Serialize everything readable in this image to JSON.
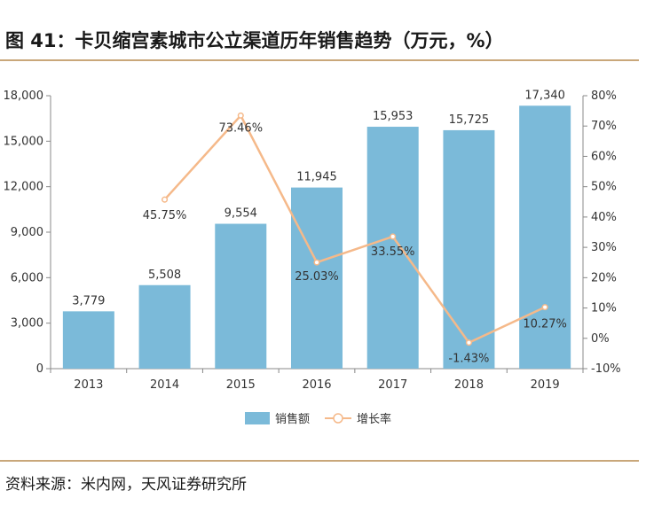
{
  "header": {
    "title": "图 41：卡贝缩宫素城市公立渠道历年销售趋势（万元，%）"
  },
  "footer": {
    "source": "资料来源：米内网，天风证券研究所"
  },
  "colors": {
    "bar": "#7bbad9",
    "line": "#f5b98a",
    "rule": "#c9a77a",
    "axis": "#888888"
  },
  "chart_data": {
    "type": "bar",
    "title": "卡贝缩宫素城市公立渠道历年销售趋势（万元，%）",
    "categories": [
      "2013",
      "2014",
      "2015",
      "2016",
      "2017",
      "2018",
      "2019"
    ],
    "series": [
      {
        "name": "销售额",
        "type": "bar",
        "axis": "left",
        "values": [
          3779,
          5508,
          9554,
          11945,
          15953,
          15725,
          17340
        ],
        "labels": [
          "3,779",
          "5,508",
          "9,554",
          "11,945",
          "15,953",
          "15,725",
          "17,340"
        ]
      },
      {
        "name": "增长率",
        "type": "line",
        "axis": "right",
        "values": [
          null,
          45.75,
          73.46,
          25.03,
          33.55,
          -1.43,
          10.27
        ],
        "labels": [
          "",
          "45.75%",
          "73.46%",
          "25.03%",
          "33.55%",
          "-1.43%",
          "10.27%"
        ]
      }
    ],
    "y_left": {
      "ylim": [
        0,
        18000
      ],
      "ticks": [
        0,
        3000,
        6000,
        9000,
        12000,
        15000,
        18000
      ],
      "tick_labels": [
        "0",
        "3,000",
        "6,000",
        "9,000",
        "12,000",
        "15,000",
        "18,000"
      ]
    },
    "y_right": {
      "ylim": [
        -10,
        80
      ],
      "ticks": [
        -10,
        0,
        10,
        20,
        30,
        40,
        50,
        60,
        70,
        80
      ],
      "tick_labels": [
        "-10%",
        "0%",
        "10%",
        "20%",
        "30%",
        "40%",
        "50%",
        "60%",
        "70%",
        "80%"
      ]
    },
    "legend": {
      "position": "bottom",
      "items": [
        "销售额",
        "增长率"
      ]
    },
    "grid": false
  }
}
